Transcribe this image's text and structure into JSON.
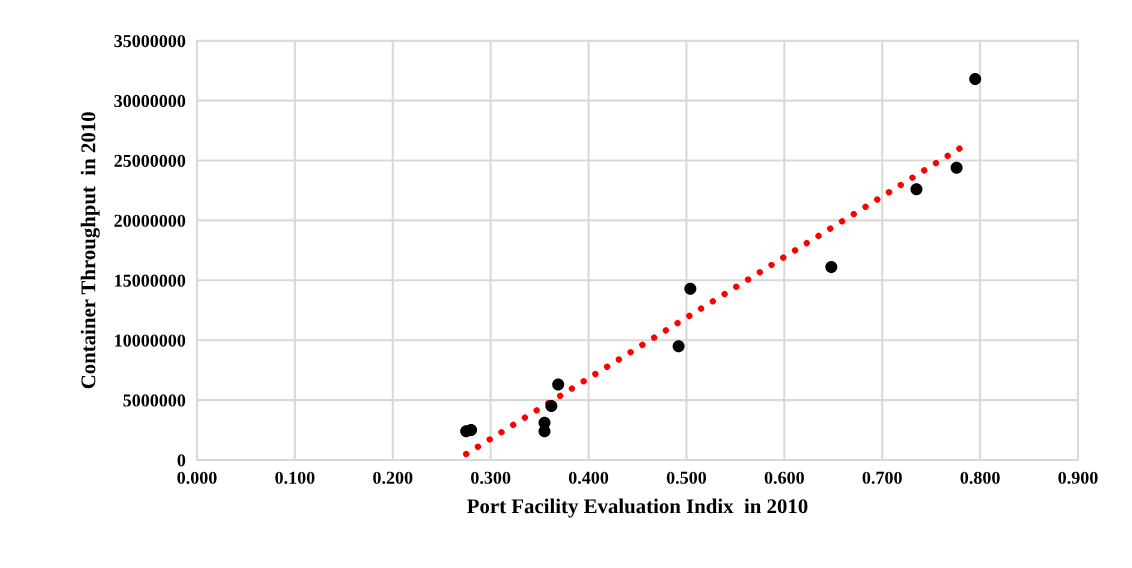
{
  "chart_data": {
    "type": "scatter",
    "xlabel": "Port Facility Evaluation Indix  in 2010",
    "ylabel": "Container Throughput  in 2010",
    "series": [
      {
        "color": "#000000",
        "marker": "circle",
        "x": [
          0.275,
          0.28,
          0.355,
          0.355,
          0.362,
          0.369,
          0.492,
          0.504,
          0.648,
          0.735,
          0.776,
          0.795
        ],
        "values": [
          2400000,
          2500000,
          3100000,
          2400000,
          4500000,
          6300000,
          9500000,
          14300000,
          16100000,
          22600000,
          24400000,
          31800000
        ]
      },
      {
        "type": "line",
        "color": "#ff0000",
        "line_style": "dotted",
        "x": [
          0.275,
          0.783
        ],
        "values": [
          500000,
          26200000
        ]
      }
    ],
    "xlim": [
      0,
      0.9
    ],
    "xticks": [
      {
        "value": 0,
        "label": "0.000"
      },
      {
        "value": 0.1,
        "label": "0.100"
      },
      {
        "value": 0.2,
        "label": "0.200"
      },
      {
        "value": 0.3,
        "label": "0.300"
      },
      {
        "value": 0.4,
        "label": "0.400"
      },
      {
        "value": 0.5,
        "label": "0.500"
      },
      {
        "value": 0.6,
        "label": "0.600"
      },
      {
        "value": 0.7,
        "label": "0.700"
      },
      {
        "value": 0.8,
        "label": "0.800"
      },
      {
        "value": 0.9,
        "label": "0.900"
      }
    ],
    "ylim": [
      0,
      35000000
    ],
    "yticks": [
      0,
      5000000,
      10000000,
      15000000,
      20000000,
      25000000,
      30000000,
      35000000
    ],
    "grid": true
  }
}
